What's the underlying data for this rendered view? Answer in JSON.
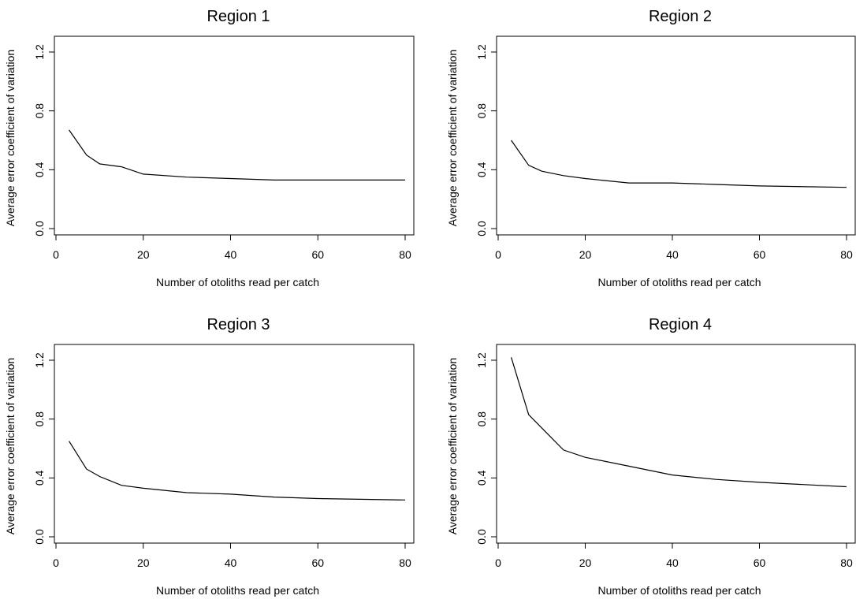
{
  "chart_data": [
    {
      "type": "line",
      "title": "Region 1",
      "xlabel": "Number of otoliths read per catch",
      "ylabel": "Average error coefficient of variation",
      "xlim": [
        0,
        80
      ],
      "ylim": [
        0,
        1.2
      ],
      "xticks": [
        "0",
        "20",
        "40",
        "60",
        "80"
      ],
      "yticks": [
        "0.0",
        "0.4",
        "0.8",
        "1.2"
      ],
      "x": [
        3,
        7,
        10,
        15,
        20,
        30,
        40,
        50,
        60,
        80
      ],
      "y": [
        0.67,
        0.5,
        0.44,
        0.42,
        0.37,
        0.35,
        0.34,
        0.33,
        0.33,
        0.33
      ]
    },
    {
      "type": "line",
      "title": "Region 2",
      "xlabel": "Number of otoliths read per catch",
      "ylabel": "Average error coefficient of variation",
      "xlim": [
        0,
        80
      ],
      "ylim": [
        0,
        1.2
      ],
      "xticks": [
        "0",
        "20",
        "40",
        "60",
        "80"
      ],
      "yticks": [
        "0.0",
        "0.4",
        "0.8",
        "1.2"
      ],
      "x": [
        3,
        7,
        10,
        15,
        20,
        30,
        40,
        50,
        60,
        80
      ],
      "y": [
        0.6,
        0.43,
        0.39,
        0.36,
        0.34,
        0.31,
        0.31,
        0.3,
        0.29,
        0.28
      ]
    },
    {
      "type": "line",
      "title": "Region 3",
      "xlabel": "Number of otoliths read per catch",
      "ylabel": "Average error coefficient of variation",
      "xlim": [
        0,
        80
      ],
      "ylim": [
        0,
        1.2
      ],
      "xticks": [
        "0",
        "20",
        "40",
        "60",
        "80"
      ],
      "yticks": [
        "0.0",
        "0.4",
        "0.8",
        "1.2"
      ],
      "x": [
        3,
        7,
        10,
        15,
        20,
        30,
        40,
        50,
        60,
        80
      ],
      "y": [
        0.65,
        0.46,
        0.41,
        0.35,
        0.33,
        0.3,
        0.29,
        0.27,
        0.26,
        0.25
      ]
    },
    {
      "type": "line",
      "title": "Region 4",
      "xlabel": "Number of otoliths read per catch",
      "ylabel": "Average error coefficient of variation",
      "xlim": [
        0,
        80
      ],
      "ylim": [
        0,
        1.2
      ],
      "xticks": [
        "0",
        "20",
        "40",
        "60",
        "80"
      ],
      "yticks": [
        "0.0",
        "0.4",
        "0.8",
        "1.2"
      ],
      "x": [
        3,
        7,
        10,
        15,
        20,
        30,
        40,
        50,
        60,
        80
      ],
      "y": [
        1.22,
        0.83,
        0.74,
        0.59,
        0.54,
        0.48,
        0.42,
        0.39,
        0.37,
        0.34
      ]
    }
  ]
}
